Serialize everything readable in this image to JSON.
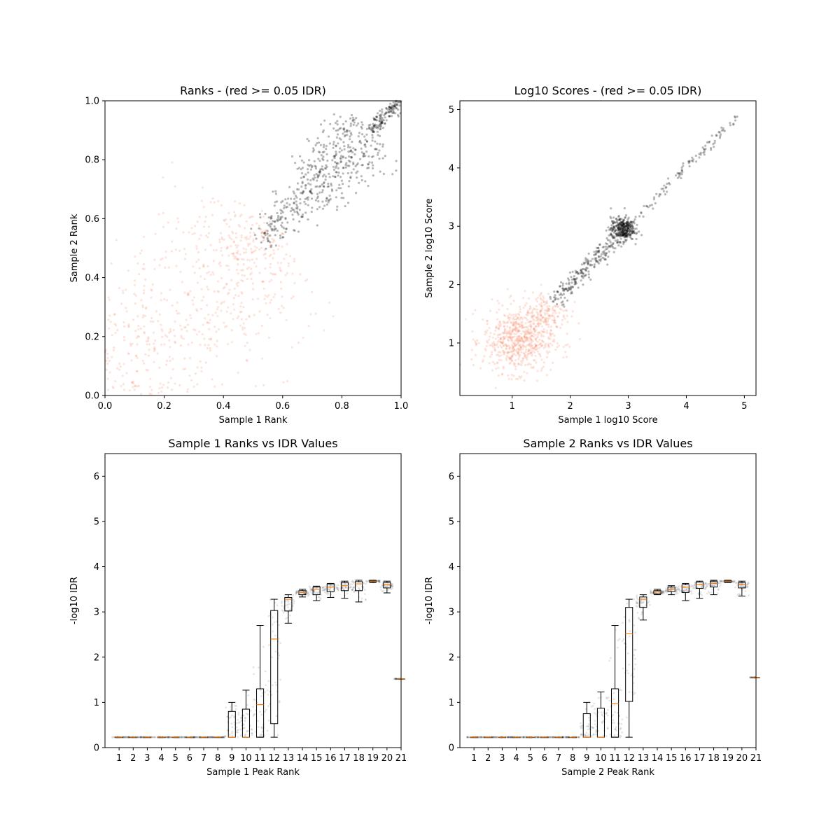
{
  "chart_data": [
    {
      "type": "scatter",
      "title": "Ranks - (red >= 0.05 IDR)",
      "xlabel": "Sample 1 Rank",
      "ylabel": "Sample 2 Rank",
      "xlim": [
        0,
        1
      ],
      "ylim": [
        0,
        1
      ],
      "xticks": [
        "0.0",
        "0.2",
        "0.4",
        "0.6",
        "0.8",
        "1.0"
      ],
      "yticks": [
        "0.0",
        "0.2",
        "0.4",
        "0.6",
        "0.8",
        "1.0"
      ],
      "grid": false,
      "colors": {
        "pass": "#000000",
        "fail": "#f4845f"
      },
      "series": [
        {
          "color_key": "fail",
          "cluster": [
            {
              "x": [
                0.0,
                0.55
              ],
              "spread": 0.14,
              "n": 700,
              "along_diag": true
            },
            {
              "x": [
                0.45,
                0.58
              ],
              "spread": 0.06,
              "n": 80,
              "along_diag": true
            }
          ]
        },
        {
          "color_key": "pass",
          "cluster": [
            {
              "x": [
                0.52,
                0.7
              ],
              "spread": 0.035,
              "n": 170,
              "along_diag": true
            },
            {
              "x": [
                0.7,
                0.9
              ],
              "spread": 0.06,
              "n": 340,
              "along_diag": true
            },
            {
              "x": [
                0.9,
                1.0
              ],
              "spread": 0.012,
              "n": 150,
              "along_diag": true
            }
          ]
        }
      ]
    },
    {
      "type": "scatter",
      "title": "Log10 Scores - (red >= 0.05 IDR)",
      "xlabel": "Sample 1 log10 Score",
      "ylabel": "Sample 2 log10 Score",
      "xlim": [
        0.1,
        5.2
      ],
      "ylim": [
        0.1,
        5.15
      ],
      "xticks": [
        "1",
        "2",
        "3",
        "4",
        "5"
      ],
      "yticks": [
        "1",
        "2",
        "3",
        "4",
        "5"
      ],
      "grid": false,
      "colors": {
        "pass": "#000000",
        "fail": "#f4845f"
      },
      "series": [
        {
          "color_key": "fail",
          "cluster": [
            {
              "cx": 1.1,
              "cy": 1.05,
              "sx": 0.3,
              "sy": 0.28,
              "n": 650
            },
            {
              "cx": 1.6,
              "cy": 1.5,
              "sx": 0.2,
              "sy": 0.2,
              "n": 150
            }
          ]
        },
        {
          "color_key": "pass",
          "cluster": [
            {
              "x": [
                1.7,
                2.8
              ],
              "spread": 0.08,
              "n": 220,
              "along_diag": true
            },
            {
              "cx": 2.9,
              "cy": 2.95,
              "sx": 0.1,
              "sy": 0.1,
              "n": 320
            },
            {
              "x": [
                3.0,
                4.9
              ],
              "spread": 0.04,
              "n": 110,
              "along_diag": true
            }
          ]
        }
      ]
    },
    {
      "type": "box",
      "title": "Sample 1 Ranks vs IDR Values",
      "xlabel": "Sample 1 Peak Rank",
      "ylabel": "-log10 IDR",
      "xlim": [
        0,
        21
      ],
      "ylim": [
        0,
        6.5
      ],
      "xticks": [
        "1",
        "2",
        "3",
        "4",
        "5",
        "6",
        "7",
        "8",
        "9",
        "10",
        "11",
        "12",
        "13",
        "14",
        "15",
        "16",
        "17",
        "18",
        "19",
        "20",
        "21"
      ],
      "yticks": [
        "0",
        "1",
        "2",
        "3",
        "4",
        "5",
        "6"
      ],
      "positions": [
        1,
        2,
        3,
        4,
        5,
        6,
        7,
        8,
        9,
        10,
        11,
        12,
        13,
        14,
        15,
        16,
        17,
        18,
        19,
        20,
        21
      ],
      "boxes": [
        {
          "wl": 0.23,
          "q1": 0.23,
          "med": 0.23,
          "q3": 0.23,
          "wh": 0.23
        },
        {
          "wl": 0.23,
          "q1": 0.23,
          "med": 0.23,
          "q3": 0.23,
          "wh": 0.23
        },
        {
          "wl": 0.23,
          "q1": 0.23,
          "med": 0.23,
          "q3": 0.23,
          "wh": 0.23
        },
        {
          "wl": 0.23,
          "q1": 0.23,
          "med": 0.23,
          "q3": 0.23,
          "wh": 0.23
        },
        {
          "wl": 0.23,
          "q1": 0.23,
          "med": 0.23,
          "q3": 0.23,
          "wh": 0.23
        },
        {
          "wl": 0.23,
          "q1": 0.23,
          "med": 0.23,
          "q3": 0.23,
          "wh": 0.23
        },
        {
          "wl": 0.23,
          "q1": 0.23,
          "med": 0.23,
          "q3": 0.23,
          "wh": 0.23
        },
        {
          "wl": 0.23,
          "q1": 0.23,
          "med": 0.23,
          "q3": 0.23,
          "wh": 0.23
        },
        {
          "wl": 0.23,
          "q1": 0.23,
          "med": 0.23,
          "q3": 0.8,
          "wh": 1.0
        },
        {
          "wl": 0.23,
          "q1": 0.23,
          "med": 0.23,
          "q3": 0.85,
          "wh": 1.27
        },
        {
          "wl": 0.23,
          "q1": 0.23,
          "med": 0.95,
          "q3": 1.3,
          "wh": 2.7
        },
        {
          "wl": 0.23,
          "q1": 0.53,
          "med": 2.4,
          "q3": 3.03,
          "wh": 3.28
        },
        {
          "wl": 2.75,
          "q1": 3.02,
          "med": 3.28,
          "q3": 3.32,
          "wh": 3.38
        },
        {
          "wl": 3.33,
          "q1": 3.38,
          "med": 3.43,
          "q3": 3.47,
          "wh": 3.5
        },
        {
          "wl": 3.25,
          "q1": 3.38,
          "med": 3.5,
          "q3": 3.55,
          "wh": 3.57
        },
        {
          "wl": 3.32,
          "q1": 3.45,
          "med": 3.55,
          "q3": 3.62,
          "wh": 3.63
        },
        {
          "wl": 3.3,
          "q1": 3.47,
          "med": 3.58,
          "q3": 3.65,
          "wh": 3.68
        },
        {
          "wl": 3.22,
          "q1": 3.47,
          "med": 3.62,
          "q3": 3.67,
          "wh": 3.7
        },
        {
          "wl": 3.65,
          "q1": 3.67,
          "med": 3.68,
          "q3": 3.69,
          "wh": 3.7
        },
        {
          "wl": 3.42,
          "q1": 3.53,
          "med": 3.6,
          "q3": 3.65,
          "wh": 3.68
        },
        {
          "wl": 1.52,
          "q1": 1.52,
          "med": 1.52,
          "q3": 1.52,
          "wh": 1.52
        }
      ],
      "points_color": "#000000",
      "box_color": "#000000",
      "median_color": "#ff7f0e"
    },
    {
      "type": "box",
      "title": "Sample 2 Ranks vs IDR Values",
      "xlabel": "Sample 2 Peak Rank",
      "ylabel": "-log10 IDR",
      "xlim": [
        0,
        21
      ],
      "ylim": [
        0,
        6.5
      ],
      "xticks": [
        "1",
        "2",
        "3",
        "4",
        "5",
        "6",
        "7",
        "8",
        "9",
        "10",
        "11",
        "12",
        "13",
        "14",
        "15",
        "16",
        "17",
        "18",
        "19",
        "20",
        "21"
      ],
      "yticks": [
        "0",
        "1",
        "2",
        "3",
        "4",
        "5",
        "6"
      ],
      "positions": [
        1,
        2,
        3,
        4,
        5,
        6,
        7,
        8,
        9,
        10,
        11,
        12,
        13,
        14,
        15,
        16,
        17,
        18,
        19,
        20,
        21
      ],
      "boxes": [
        {
          "wl": 0.23,
          "q1": 0.23,
          "med": 0.23,
          "q3": 0.23,
          "wh": 0.23
        },
        {
          "wl": 0.23,
          "q1": 0.23,
          "med": 0.23,
          "q3": 0.23,
          "wh": 0.23
        },
        {
          "wl": 0.23,
          "q1": 0.23,
          "med": 0.23,
          "q3": 0.23,
          "wh": 0.23
        },
        {
          "wl": 0.23,
          "q1": 0.23,
          "med": 0.23,
          "q3": 0.23,
          "wh": 0.23
        },
        {
          "wl": 0.23,
          "q1": 0.23,
          "med": 0.23,
          "q3": 0.23,
          "wh": 0.23
        },
        {
          "wl": 0.23,
          "q1": 0.23,
          "med": 0.23,
          "q3": 0.23,
          "wh": 0.23
        },
        {
          "wl": 0.23,
          "q1": 0.23,
          "med": 0.23,
          "q3": 0.23,
          "wh": 0.23
        },
        {
          "wl": 0.23,
          "q1": 0.23,
          "med": 0.23,
          "q3": 0.23,
          "wh": 0.23
        },
        {
          "wl": 0.23,
          "q1": 0.23,
          "med": 0.23,
          "q3": 0.75,
          "wh": 1.0
        },
        {
          "wl": 0.23,
          "q1": 0.23,
          "med": 0.23,
          "q3": 0.87,
          "wh": 1.23
        },
        {
          "wl": 0.23,
          "q1": 0.23,
          "med": 0.97,
          "q3": 1.3,
          "wh": 2.7
        },
        {
          "wl": 0.23,
          "q1": 1.02,
          "med": 2.52,
          "q3": 3.1,
          "wh": 3.28
        },
        {
          "wl": 2.82,
          "q1": 3.1,
          "med": 3.28,
          "q3": 3.33,
          "wh": 3.38
        },
        {
          "wl": 3.38,
          "q1": 3.4,
          "med": 3.44,
          "q3": 3.47,
          "wh": 3.5
        },
        {
          "wl": 3.38,
          "q1": 3.45,
          "med": 3.5,
          "q3": 3.55,
          "wh": 3.58
        },
        {
          "wl": 3.25,
          "q1": 3.43,
          "med": 3.55,
          "q3": 3.6,
          "wh": 3.63
        },
        {
          "wl": 3.3,
          "q1": 3.52,
          "med": 3.6,
          "q3": 3.66,
          "wh": 3.68
        },
        {
          "wl": 3.38,
          "q1": 3.55,
          "med": 3.63,
          "q3": 3.68,
          "wh": 3.7
        },
        {
          "wl": 3.65,
          "q1": 3.67,
          "med": 3.68,
          "q3": 3.69,
          "wh": 3.7
        },
        {
          "wl": 3.35,
          "q1": 3.53,
          "med": 3.6,
          "q3": 3.65,
          "wh": 3.68
        },
        {
          "wl": 1.55,
          "q1": 1.55,
          "med": 1.55,
          "q3": 1.55,
          "wh": 1.55
        }
      ],
      "points_color": "#000000",
      "box_color": "#000000",
      "median_color": "#ff7f0e"
    }
  ]
}
